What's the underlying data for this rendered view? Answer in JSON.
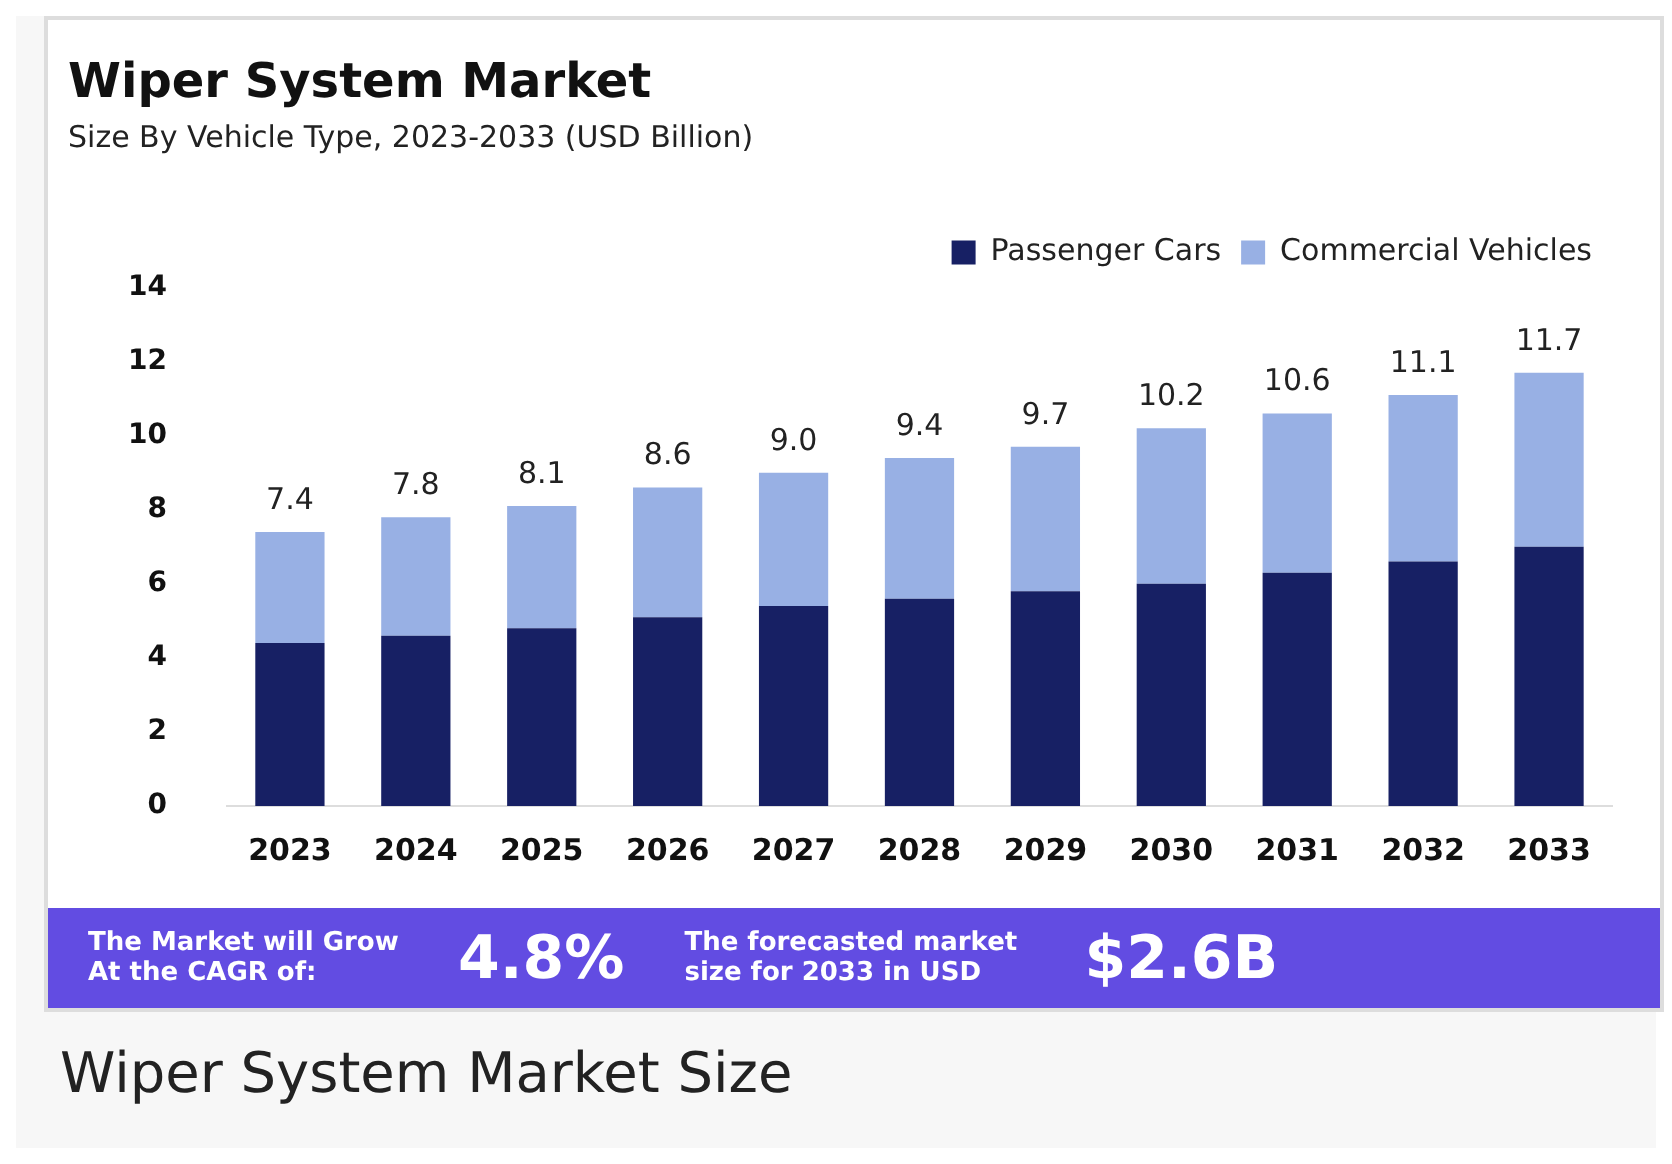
{
  "chart_data": {
    "type": "bar",
    "title": "Wiper System Market",
    "subtitle": "Size By Vehicle Type, 2023-2033 (USD Billion)",
    "categories": [
      "2023",
      "2024",
      "2025",
      "2026",
      "2027",
      "2028",
      "2029",
      "2030",
      "2031",
      "2032",
      "2033"
    ],
    "series": [
      {
        "name": "Passenger Cars",
        "color": "#172064",
        "values": [
          4.4,
          4.6,
          4.8,
          5.1,
          5.4,
          5.6,
          5.8,
          6.0,
          6.3,
          6.6,
          7.0
        ]
      },
      {
        "name": "Commercial Vehicles",
        "color": "#98b0e4",
        "values": [
          3.0,
          3.2,
          3.3,
          3.5,
          3.6,
          3.8,
          3.9,
          4.2,
          4.3,
          4.5,
          4.7
        ]
      }
    ],
    "stacked": true,
    "totals": [
      "7.4",
      "7.8",
      "8.1",
      "8.6",
      "9.0",
      "9.4",
      "9.7",
      "10.2",
      "10.6",
      "11.1",
      "11.7"
    ],
    "ylim": [
      0,
      14
    ],
    "yticks": [
      0,
      2,
      4,
      6,
      8,
      10,
      12,
      14
    ],
    "grid": false,
    "legend": "top right",
    "annotations": [
      "The Market will Grow At the CAGR of:",
      "4.8%",
      "The forecasted market size for 2033 in USD",
      "$2.6B",
      "Wiper System Market Size"
    ]
  }
}
